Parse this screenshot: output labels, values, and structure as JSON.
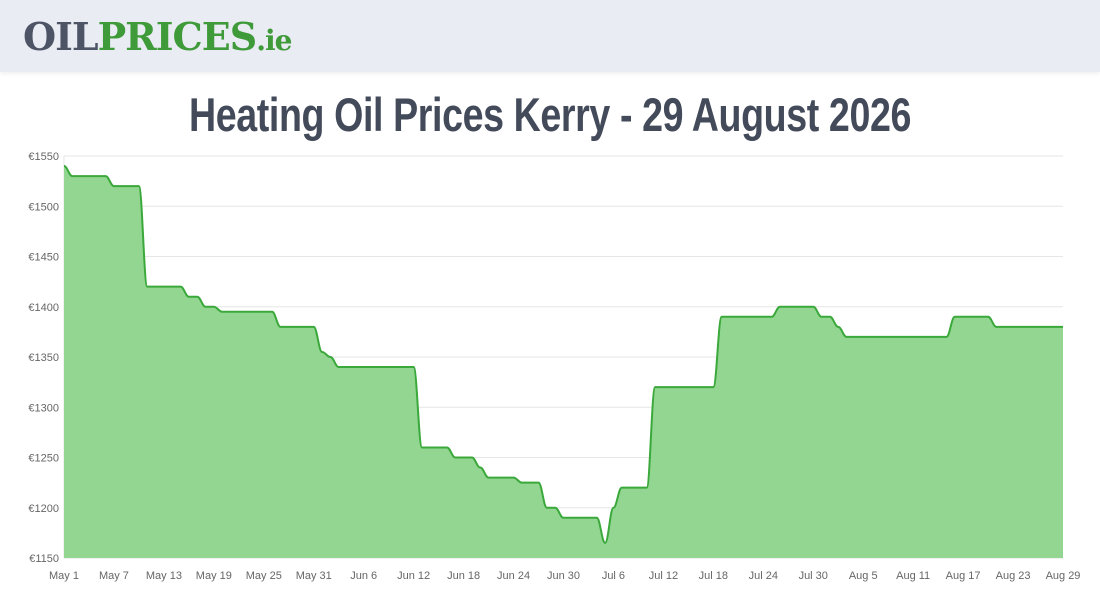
{
  "header": {
    "logo": {
      "part_oil": "OIL",
      "part_prices": "PRICES",
      "part_tld": ".ie"
    }
  },
  "page_title": "Heating Oil Prices Kerry - 29 August 2026",
  "colors": {
    "header_bg": "#e9ecf3",
    "title": "#434a5a",
    "line": "#3aa83a",
    "area_fill": "#93d692",
    "grid": "#e6e6e6",
    "tick_text": "#666666"
  },
  "chart_data": {
    "type": "area",
    "title": "Heating Oil Prices Kerry - 29 August 2026",
    "xlabel": "",
    "ylabel": "",
    "y_prefix": "€",
    "ylim": [
      1150,
      1550
    ],
    "y_ticks": [
      1150,
      1200,
      1250,
      1300,
      1350,
      1400,
      1450,
      1500,
      1550
    ],
    "x_tick_labels": [
      "May 1",
      "May 7",
      "May 13",
      "May 19",
      "May 25",
      "May 31",
      "Jun 6",
      "Jun 12",
      "Jun 18",
      "Jun 24",
      "Jun 30",
      "Jul 6",
      "Jul 12",
      "Jul 18",
      "Jul 24",
      "Jul 30",
      "Aug 5",
      "Aug 11",
      "Aug 17",
      "Aug 23",
      "Aug 29"
    ],
    "grid": true,
    "legend": false,
    "series": [
      {
        "dates": [
          "May 1",
          "May 2",
          "May 3",
          "May 4",
          "May 5",
          "May 6",
          "May 7",
          "May 8",
          "May 9",
          "May 10",
          "May 11",
          "May 12",
          "May 13",
          "May 14",
          "May 15",
          "May 16",
          "May 17",
          "May 18",
          "May 19",
          "May 20",
          "May 21",
          "May 22",
          "May 23",
          "May 24",
          "May 25",
          "May 26",
          "May 27",
          "May 28",
          "May 29",
          "May 30",
          "May 31",
          "Jun 1",
          "Jun 2",
          "Jun 3",
          "Jun 4",
          "Jun 5",
          "Jun 6",
          "Jun 7",
          "Jun 8",
          "Jun 9",
          "Jun 10",
          "Jun 11",
          "Jun 12",
          "Jun 13",
          "Jun 14",
          "Jun 15",
          "Jun 16",
          "Jun 17",
          "Jun 18",
          "Jun 19",
          "Jun 20",
          "Jun 21",
          "Jun 22",
          "Jun 23",
          "Jun 24",
          "Jun 25",
          "Jun 26",
          "Jun 27",
          "Jun 28",
          "Jun 29",
          "Jun 30",
          "Jul 1",
          "Jul 2",
          "Jul 3",
          "Jul 4",
          "Jul 5",
          "Jul 6",
          "Jul 7",
          "Jul 8",
          "Jul 9",
          "Jul 10",
          "Jul 11",
          "Jul 12",
          "Jul 13",
          "Jul 14",
          "Jul 15",
          "Jul 16",
          "Jul 17",
          "Jul 18",
          "Jul 19",
          "Jul 20",
          "Jul 21",
          "Jul 22",
          "Jul 23",
          "Jul 24",
          "Jul 25",
          "Jul 26",
          "Jul 27",
          "Jul 28",
          "Jul 29",
          "Jul 30",
          "Jul 31",
          "Aug 1",
          "Aug 2",
          "Aug 3",
          "Aug 4",
          "Aug 5",
          "Aug 6",
          "Aug 7",
          "Aug 8",
          "Aug 9",
          "Aug 10",
          "Aug 11",
          "Aug 12",
          "Aug 13",
          "Aug 14",
          "Aug 15",
          "Aug 16",
          "Aug 17",
          "Aug 18",
          "Aug 19",
          "Aug 20",
          "Aug 21",
          "Aug 22",
          "Aug 23",
          "Aug 24",
          "Aug 25",
          "Aug 26",
          "Aug 27",
          "Aug 28",
          "Aug 29"
        ],
        "values": [
          1540,
          1530,
          1530,
          1530,
          1530,
          1530,
          1520,
          1520,
          1520,
          1520,
          1420,
          1420,
          1420,
          1420,
          1420,
          1410,
          1410,
          1400,
          1400,
          1395,
          1395,
          1395,
          1395,
          1395,
          1395,
          1395,
          1380,
          1380,
          1380,
          1380,
          1380,
          1355,
          1350,
          1340,
          1340,
          1340,
          1340,
          1340,
          1340,
          1340,
          1340,
          1340,
          1340,
          1260,
          1260,
          1260,
          1260,
          1250,
          1250,
          1250,
          1240,
          1230,
          1230,
          1230,
          1230,
          1225,
          1225,
          1225,
          1200,
          1200,
          1190,
          1190,
          1190,
          1190,
          1190,
          1165,
          1200,
          1220,
          1220,
          1220,
          1220,
          1320,
          1320,
          1320,
          1320,
          1320,
          1320,
          1320,
          1320,
          1390,
          1390,
          1390,
          1390,
          1390,
          1390,
          1390,
          1400,
          1400,
          1400,
          1400,
          1400,
          1390,
          1390,
          1380,
          1370,
          1370,
          1370,
          1370,
          1370,
          1370,
          1370,
          1370,
          1370,
          1370,
          1370,
          1370,
          1370,
          1390,
          1390,
          1390,
          1390,
          1390,
          1380,
          1380,
          1380,
          1380,
          1380,
          1380,
          1380,
          1380,
          1380
        ]
      }
    ]
  }
}
